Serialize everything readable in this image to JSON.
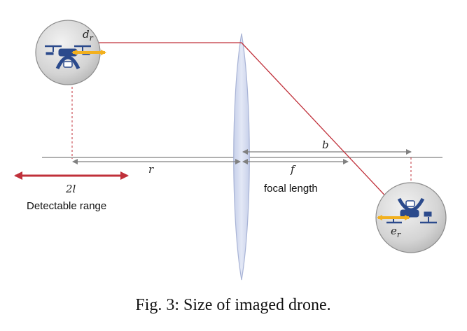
{
  "labels": {
    "d_r": "d",
    "d_r_sub": "r",
    "b": "b",
    "r": "r",
    "f": "f",
    "focal_length": "focal length",
    "two_l": "2l",
    "detectable_range": "Detectable range",
    "e_r": "e",
    "e_r_sub": "r"
  },
  "caption": "Fig. 3: Size of imaged drone.",
  "colors": {
    "ray": "#c0303a",
    "axis": "#808080",
    "lens_fill": "#d6ddf0",
    "lens_stroke": "#a9b4d6",
    "detect_arrow": "#c0303a",
    "size_arrow": "#f2b01e",
    "drone": "#2b4a8c"
  }
}
